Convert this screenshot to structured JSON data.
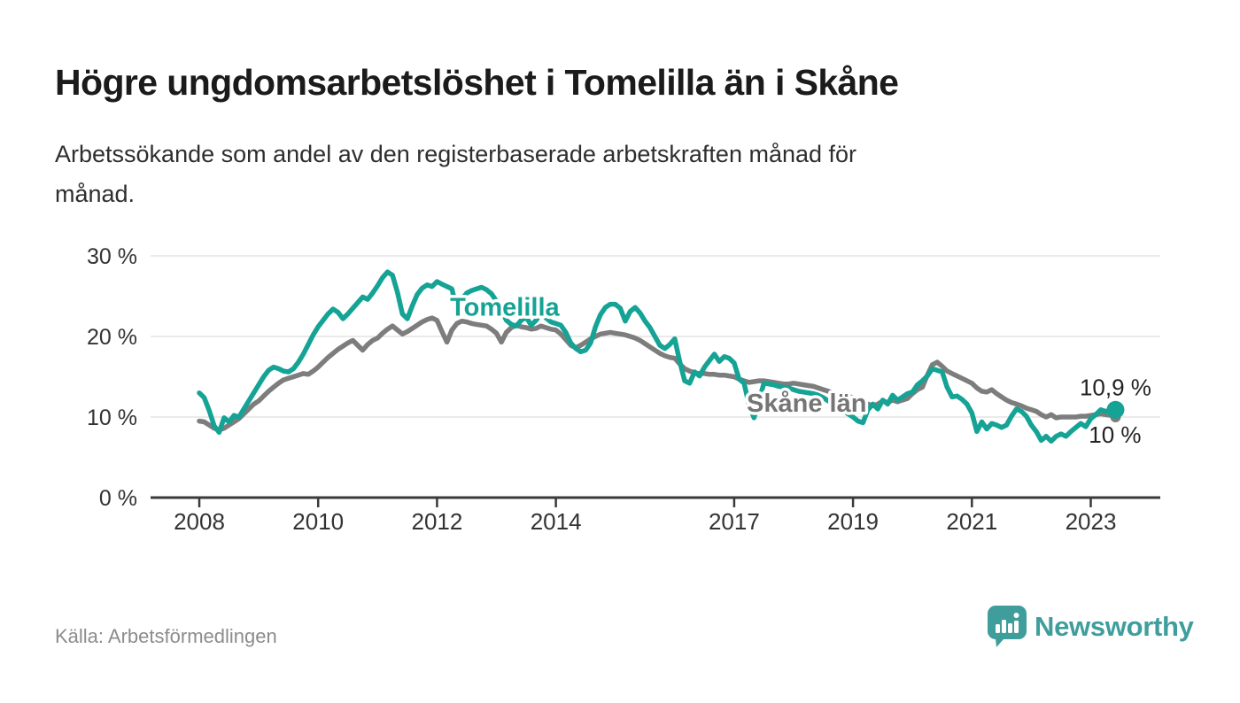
{
  "header": {
    "title": "Högre ungdomsarbetslöshet i Tomelilla än i Skåne",
    "subtitle_lines": [
      "Arbetssökande som andel av den registerbaserade arbetskraften månad för",
      "månad."
    ]
  },
  "footer": {
    "source_label": "Källa: Arbetsförmedlingen",
    "logo_text": "Newsworthy",
    "logo_color": "#3f9e9c"
  },
  "chart_data": {
    "type": "line",
    "title": "Högre ungdomsarbetslöshet i Tomelilla än i Skåne",
    "ylabel": "",
    "xlabel": "",
    "grid": true,
    "legend_position": "inline-labels",
    "xlim": [
      2007.18,
      2024.17
    ],
    "ylim": [
      0,
      30
    ],
    "x_start_year": 2008,
    "x_step_months": 1,
    "yticks": {
      "values": [
        0,
        10,
        20,
        30
      ],
      "labels": [
        "0 %",
        "10 %",
        "20 %",
        "30 %"
      ]
    },
    "xticks": {
      "values": [
        2008,
        2010,
        2012,
        2014,
        2017,
        2019,
        2021,
        2023
      ],
      "labels": [
        "2008",
        "2010",
        "2012",
        "2014",
        "2017",
        "2019",
        "2021",
        "2023"
      ]
    },
    "axis_color": "#3a3a3a",
    "grid_color": "#e4e4e4",
    "series": [
      {
        "name": "Skåne län",
        "color": "#7d7d7d",
        "end_dot_radius": 6,
        "values": [
          9.5,
          9.4,
          9.0,
          8.6,
          8.4,
          8.6,
          9.0,
          9.4,
          9.8,
          10.4,
          11.0,
          11.6,
          12.0,
          12.6,
          13.2,
          13.7,
          14.2,
          14.6,
          14.8,
          15.0,
          15.2,
          15.4,
          15.3,
          15.7,
          16.2,
          16.8,
          17.4,
          17.9,
          18.4,
          18.8,
          19.2,
          19.5,
          18.9,
          18.3,
          19.0,
          19.5,
          19.8,
          20.4,
          20.9,
          21.3,
          20.8,
          20.3,
          20.6,
          21.0,
          21.4,
          21.8,
          22.1,
          22.3,
          22.0,
          20.6,
          19.3,
          20.8,
          21.6,
          21.9,
          21.8,
          21.6,
          21.5,
          21.4,
          21.3,
          20.9,
          20.4,
          19.3,
          20.5,
          21.1,
          21.4,
          21.2,
          21.1,
          20.9,
          21.0,
          21.3,
          21.1,
          20.9,
          20.8,
          20.3,
          19.6,
          18.9,
          18.6,
          18.9,
          19.3,
          19.7,
          20.0,
          20.3,
          20.4,
          20.5,
          20.4,
          20.3,
          20.2,
          20.0,
          19.8,
          19.5,
          19.1,
          18.7,
          18.3,
          17.9,
          17.6,
          17.4,
          17.3,
          16.6,
          16.0,
          15.7,
          15.5,
          15.4,
          15.4,
          15.3,
          15.3,
          15.2,
          15.2,
          15.1,
          15.0,
          14.7,
          14.5,
          14.3,
          14.4,
          14.5,
          14.5,
          14.4,
          14.3,
          14.2,
          14.1,
          14.1,
          14.2,
          14.1,
          14.0,
          13.9,
          13.8,
          13.6,
          13.4,
          13.2,
          13.0,
          12.8,
          12.7,
          12.6,
          12.4,
          12.1,
          11.8,
          11.6,
          11.4,
          11.6,
          12.0,
          11.8,
          12.1,
          11.9,
          12.1,
          12.3,
          12.9,
          13.4,
          13.7,
          15.2,
          16.5,
          16.8,
          16.3,
          15.7,
          15.4,
          15.1,
          14.8,
          14.5,
          14.2,
          13.6,
          13.2,
          13.1,
          13.4,
          12.9,
          12.5,
          12.1,
          11.8,
          11.6,
          11.4,
          11.1,
          10.9,
          10.7,
          10.3,
          10.0,
          10.3,
          9.9,
          10.0,
          10.0,
          10.0,
          10.0,
          10.1,
          10.1,
          10.2,
          10.3,
          10.4,
          10.3,
          10.2,
          10.0
        ]
      },
      {
        "name": "Tomelilla",
        "color": "#14a394",
        "end_dot_radius": 10,
        "values": [
          13.0,
          12.4,
          10.8,
          8.9,
          8.1,
          9.9,
          9.4,
          10.2,
          10.0,
          11.0,
          12.0,
          13.0,
          14.0,
          15.0,
          15.8,
          16.2,
          16.0,
          15.7,
          15.6,
          16.0,
          16.8,
          17.8,
          19.0,
          20.2,
          21.2,
          22.0,
          22.8,
          23.4,
          23.0,
          22.2,
          22.8,
          23.5,
          24.2,
          24.9,
          24.6,
          25.4,
          26.3,
          27.3,
          28.0,
          27.6,
          25.5,
          22.8,
          22.2,
          23.8,
          25.2,
          26.0,
          26.4,
          26.2,
          26.8,
          26.5,
          26.2,
          25.9,
          23.3,
          24.6,
          25.4,
          25.7,
          25.9,
          26.1,
          25.8,
          25.3,
          24.4,
          23.2,
          22.0,
          21.5,
          21.3,
          22.0,
          22.4,
          21.4,
          22.0,
          22.9,
          22.3,
          21.8,
          21.6,
          21.4,
          20.5,
          19.2,
          18.5,
          18.1,
          18.3,
          19.2,
          21.2,
          22.7,
          23.6,
          24.0,
          24.0,
          23.5,
          21.9,
          23.1,
          23.6,
          22.9,
          21.9,
          21.1,
          20.0,
          18.9,
          18.5,
          19.0,
          19.7,
          16.9,
          14.5,
          14.2,
          15.6,
          15.1,
          16.2,
          17.0,
          17.8,
          16.9,
          17.5,
          17.3,
          16.7,
          14.7,
          14.2,
          11.5,
          9.9,
          12.0,
          14.2,
          14.1,
          14.0,
          13.8,
          13.7,
          13.6,
          13.4,
          13.2,
          13.1,
          13.0,
          12.9,
          12.7,
          12.4,
          12.0,
          11.6,
          11.2,
          10.8,
          10.4,
          10.0,
          9.5,
          9.3,
          10.9,
          11.6,
          11.0,
          12.1,
          11.6,
          12.7,
          12.1,
          12.5,
          12.9,
          13.1,
          14.0,
          14.5,
          15.1,
          16.0,
          15.8,
          15.6,
          13.7,
          12.5,
          12.6,
          12.2,
          11.6,
          10.5,
          8.2,
          9.4,
          8.5,
          9.2,
          9.0,
          8.7,
          9.0,
          10.1,
          11.0,
          10.7,
          10.1,
          9.0,
          8.2,
          7.1,
          7.6,
          7.0,
          7.6,
          7.9,
          7.6,
          8.2,
          8.7,
          9.2,
          8.8,
          9.8,
          10.3,
          10.9,
          10.7,
          10.8,
          10.9
        ]
      }
    ],
    "series_labels": [
      {
        "text": "Tomelilla",
        "x": 2013.14,
        "y_value": 22.6,
        "color": "#14a394",
        "anchor": "middle"
      },
      {
        "text": "Skåne län",
        "x": 2018.22,
        "y_value": 10.66,
        "color": "#757575",
        "anchor": "middle"
      }
    ],
    "end_value_labels": [
      {
        "text": "10,9 %",
        "x": 2024.02,
        "y_value": 12.7,
        "anchor": "end",
        "color": "#222222"
      },
      {
        "text": "10 %",
        "x": 2023.85,
        "y_value": 6.8,
        "anchor": "end",
        "color": "#222222"
      }
    ]
  }
}
